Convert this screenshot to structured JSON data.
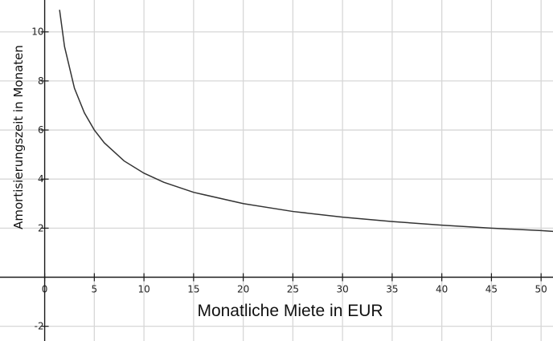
{
  "chart_data": {
    "type": "line",
    "title": "",
    "xlabel": "Monatliche Miete in EUR",
    "ylabel": "Amortisierungszeit in Monaten",
    "xlim": [
      -4.5,
      51.2
    ],
    "ylim": [
      -2.6,
      11.3
    ],
    "grid": true,
    "x_ticks": [
      0,
      5,
      10,
      15,
      20,
      25,
      30,
      35,
      40,
      45,
      50
    ],
    "y_ticks": [
      -2,
      2,
      4,
      6,
      8,
      10
    ],
    "series": [
      {
        "x": [
          1.5,
          2,
          3,
          4,
          5,
          6,
          8,
          10,
          12,
          15,
          20,
          25,
          30,
          35,
          40,
          45,
          50,
          51.2
        ],
        "y": [
          10.9,
          9.4,
          7.7,
          6.7,
          6.0,
          5.48,
          4.74,
          4.24,
          3.87,
          3.46,
          3.0,
          2.68,
          2.45,
          2.27,
          2.12,
          2.0,
          1.9,
          1.87
        ]
      }
    ]
  }
}
